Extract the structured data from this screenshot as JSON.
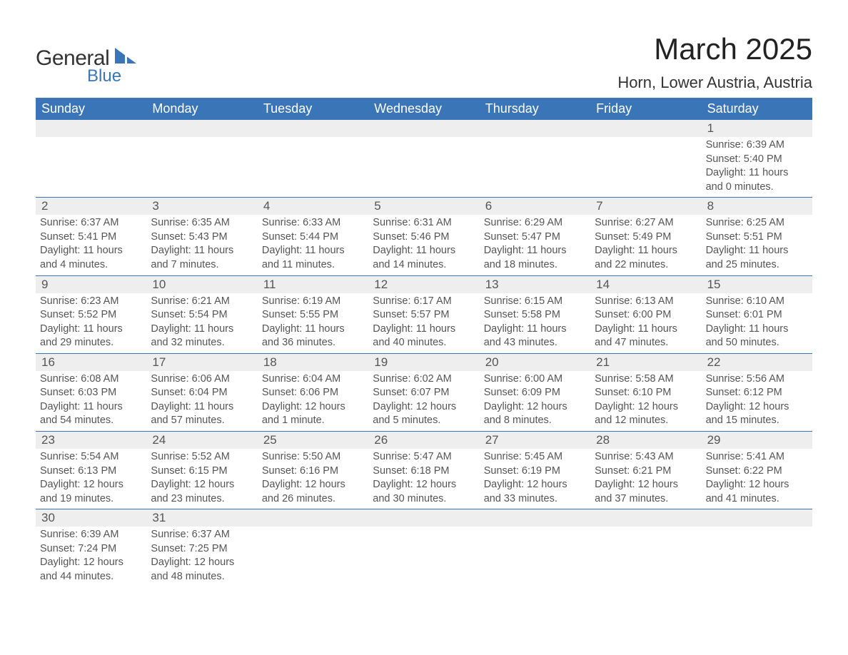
{
  "logo": {
    "word1": "General",
    "word2": "Blue"
  },
  "title": "March 2025",
  "location": "Horn, Lower Austria, Austria",
  "colors": {
    "header_bg": "#3a75b7",
    "header_text": "#ffffff",
    "daynum_bg": "#eeeeee",
    "row_border": "#3a75b7",
    "body_text": "#555555",
    "logo_blue": "#3a75b7",
    "page_bg": "#ffffff"
  },
  "font": {
    "family": "Arial",
    "title_size": 42,
    "location_size": 22,
    "header_size": 18,
    "daynum_size": 17,
    "body_size": 14.5
  },
  "layout": {
    "columns": 7,
    "week_start": "Sunday"
  },
  "days_of_week": [
    "Sunday",
    "Monday",
    "Tuesday",
    "Wednesday",
    "Thursday",
    "Friday",
    "Saturday"
  ],
  "weeks": [
    [
      {
        "blank": true
      },
      {
        "blank": true
      },
      {
        "blank": true
      },
      {
        "blank": true
      },
      {
        "blank": true
      },
      {
        "blank": true
      },
      {
        "n": "1",
        "sunrise": "6:39 AM",
        "sunset": "5:40 PM",
        "daylight": "11 hours and 0 minutes."
      }
    ],
    [
      {
        "n": "2",
        "sunrise": "6:37 AM",
        "sunset": "5:41 PM",
        "daylight": "11 hours and 4 minutes."
      },
      {
        "n": "3",
        "sunrise": "6:35 AM",
        "sunset": "5:43 PM",
        "daylight": "11 hours and 7 minutes."
      },
      {
        "n": "4",
        "sunrise": "6:33 AM",
        "sunset": "5:44 PM",
        "daylight": "11 hours and 11 minutes."
      },
      {
        "n": "5",
        "sunrise": "6:31 AM",
        "sunset": "5:46 PM",
        "daylight": "11 hours and 14 minutes."
      },
      {
        "n": "6",
        "sunrise": "6:29 AM",
        "sunset": "5:47 PM",
        "daylight": "11 hours and 18 minutes."
      },
      {
        "n": "7",
        "sunrise": "6:27 AM",
        "sunset": "5:49 PM",
        "daylight": "11 hours and 22 minutes."
      },
      {
        "n": "8",
        "sunrise": "6:25 AM",
        "sunset": "5:51 PM",
        "daylight": "11 hours and 25 minutes."
      }
    ],
    [
      {
        "n": "9",
        "sunrise": "6:23 AM",
        "sunset": "5:52 PM",
        "daylight": "11 hours and 29 minutes."
      },
      {
        "n": "10",
        "sunrise": "6:21 AM",
        "sunset": "5:54 PM",
        "daylight": "11 hours and 32 minutes."
      },
      {
        "n": "11",
        "sunrise": "6:19 AM",
        "sunset": "5:55 PM",
        "daylight": "11 hours and 36 minutes."
      },
      {
        "n": "12",
        "sunrise": "6:17 AM",
        "sunset": "5:57 PM",
        "daylight": "11 hours and 40 minutes."
      },
      {
        "n": "13",
        "sunrise": "6:15 AM",
        "sunset": "5:58 PM",
        "daylight": "11 hours and 43 minutes."
      },
      {
        "n": "14",
        "sunrise": "6:13 AM",
        "sunset": "6:00 PM",
        "daylight": "11 hours and 47 minutes."
      },
      {
        "n": "15",
        "sunrise": "6:10 AM",
        "sunset": "6:01 PM",
        "daylight": "11 hours and 50 minutes."
      }
    ],
    [
      {
        "n": "16",
        "sunrise": "6:08 AM",
        "sunset": "6:03 PM",
        "daylight": "11 hours and 54 minutes."
      },
      {
        "n": "17",
        "sunrise": "6:06 AM",
        "sunset": "6:04 PM",
        "daylight": "11 hours and 57 minutes."
      },
      {
        "n": "18",
        "sunrise": "6:04 AM",
        "sunset": "6:06 PM",
        "daylight": "12 hours and 1 minute."
      },
      {
        "n": "19",
        "sunrise": "6:02 AM",
        "sunset": "6:07 PM",
        "daylight": "12 hours and 5 minutes."
      },
      {
        "n": "20",
        "sunrise": "6:00 AM",
        "sunset": "6:09 PM",
        "daylight": "12 hours and 8 minutes."
      },
      {
        "n": "21",
        "sunrise": "5:58 AM",
        "sunset": "6:10 PM",
        "daylight": "12 hours and 12 minutes."
      },
      {
        "n": "22",
        "sunrise": "5:56 AM",
        "sunset": "6:12 PM",
        "daylight": "12 hours and 15 minutes."
      }
    ],
    [
      {
        "n": "23",
        "sunrise": "5:54 AM",
        "sunset": "6:13 PM",
        "daylight": "12 hours and 19 minutes."
      },
      {
        "n": "24",
        "sunrise": "5:52 AM",
        "sunset": "6:15 PM",
        "daylight": "12 hours and 23 minutes."
      },
      {
        "n": "25",
        "sunrise": "5:50 AM",
        "sunset": "6:16 PM",
        "daylight": "12 hours and 26 minutes."
      },
      {
        "n": "26",
        "sunrise": "5:47 AM",
        "sunset": "6:18 PM",
        "daylight": "12 hours and 30 minutes."
      },
      {
        "n": "27",
        "sunrise": "5:45 AM",
        "sunset": "6:19 PM",
        "daylight": "12 hours and 33 minutes."
      },
      {
        "n": "28",
        "sunrise": "5:43 AM",
        "sunset": "6:21 PM",
        "daylight": "12 hours and 37 minutes."
      },
      {
        "n": "29",
        "sunrise": "5:41 AM",
        "sunset": "6:22 PM",
        "daylight": "12 hours and 41 minutes."
      }
    ],
    [
      {
        "n": "30",
        "sunrise": "6:39 AM",
        "sunset": "7:24 PM",
        "daylight": "12 hours and 44 minutes."
      },
      {
        "n": "31",
        "sunrise": "6:37 AM",
        "sunset": "7:25 PM",
        "daylight": "12 hours and 48 minutes."
      },
      {
        "blank": true
      },
      {
        "blank": true
      },
      {
        "blank": true
      },
      {
        "blank": true
      },
      {
        "blank": true
      }
    ]
  ],
  "labels": {
    "sunrise": "Sunrise:",
    "sunset": "Sunset:",
    "daylight": "Daylight:"
  }
}
